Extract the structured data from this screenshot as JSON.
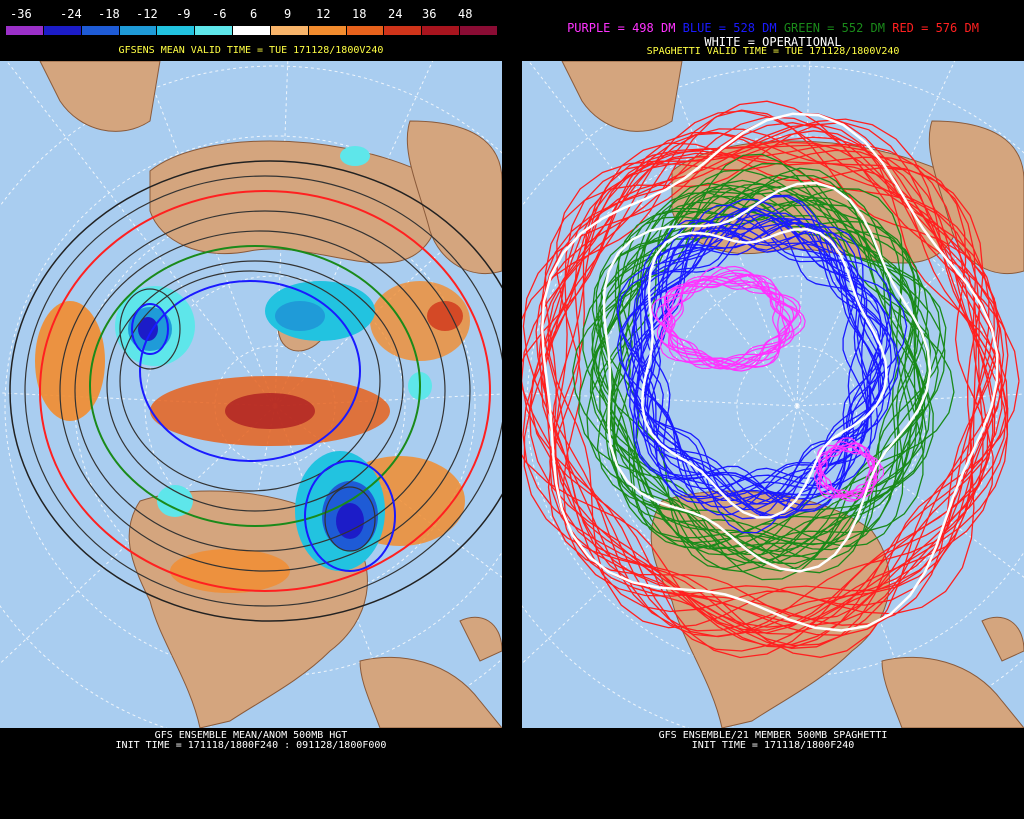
{
  "left": {
    "colorbar_labels": [
      "-36",
      "-24",
      "-18",
      "-12",
      "-9",
      "-6",
      "6",
      "9",
      "12",
      "18",
      "24",
      "36",
      "48"
    ],
    "colorbar_colors": [
      "#9b30c8",
      "#1c1cc8",
      "#1e5bd6",
      "#1f9bd8",
      "#22c3e0",
      "#5ee6ea",
      "#ffffff",
      "#f8b46a",
      "#f28c2e",
      "#e8621c",
      "#d0341a",
      "#a8141e",
      "#8a0c34"
    ],
    "header": "GFSENS MEAN VALID TIME = TUE 171128/1800V240",
    "footer_line1": "GFS ENSEMBLE MEAN/ANOM 500MB HGT",
    "footer_line2": "INIT TIME = 171118/1800F240 : 091128/1800F000"
  },
  "right": {
    "legend_purple": "PURPLE = 498 DM",
    "legend_blue": "BLUE = 528 DM",
    "legend_green": "GREEN = 552 DM",
    "legend_red": "RED = 576 DM",
    "legend_white": "WHITE = OPERATIONAL",
    "header": "SPAGHETTI VALID TIME = TUE 171128/1800V240",
    "footer_line1": "GFS ENSEMBLE/21 MEMBER 500MB SPAGHETTI",
    "footer_line2": "INIT TIME = 171118/1800F240"
  },
  "colors": {
    "ocean": "#a9cdf0",
    "land": "#d4a57e",
    "purple": "#ff33ff",
    "blue": "#1a1aff",
    "green": "#1a8a1a",
    "red": "#ff2020",
    "white": "#ffffff"
  }
}
